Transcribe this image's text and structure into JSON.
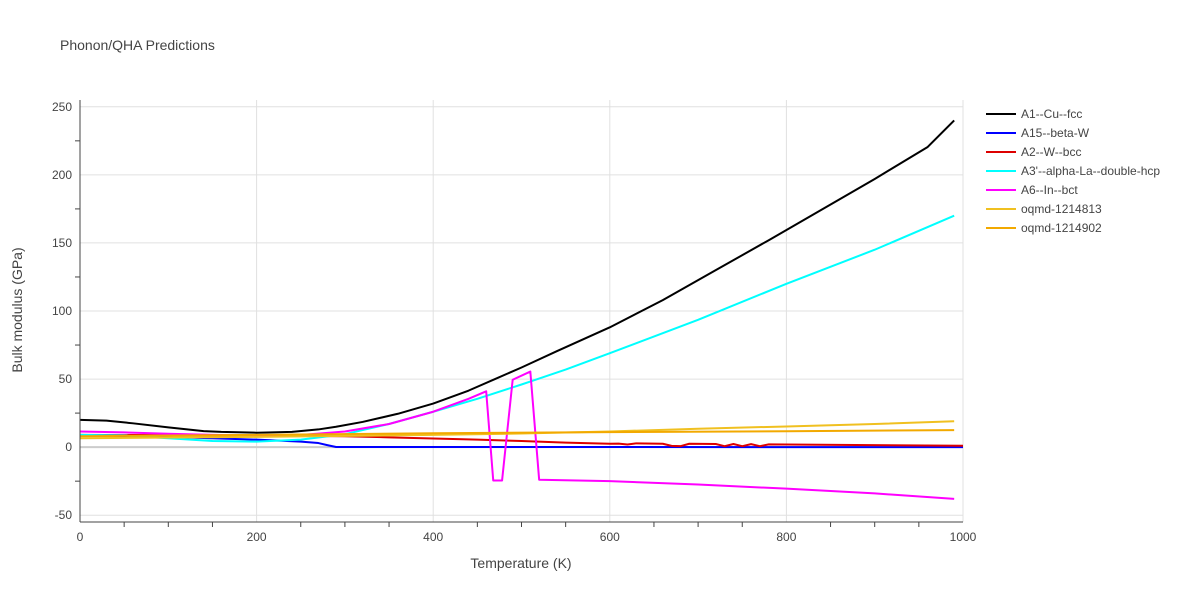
{
  "chart_data": {
    "type": "line",
    "title": "Phonon/QHA Predictions",
    "xlabel": "Temperature (K)",
    "ylabel": "Bulk modulus (GPa)",
    "xlim": [
      0,
      1000
    ],
    "ylim": [
      -55,
      255
    ],
    "xticks": [
      0,
      200,
      400,
      600,
      800,
      1000
    ],
    "yticks": [
      -50,
      0,
      50,
      100,
      150,
      200,
      250
    ],
    "grid": true,
    "legend_position": "right",
    "series": [
      {
        "name": "A1--Cu--fcc",
        "color": "#000000",
        "points": [
          [
            0,
            20
          ],
          [
            30,
            19.5
          ],
          [
            60,
            17.5
          ],
          [
            100,
            14.5
          ],
          [
            140,
            11.8
          ],
          [
            160,
            11.2
          ],
          [
            200,
            10.6
          ],
          [
            240,
            11.2
          ],
          [
            270,
            13
          ],
          [
            290,
            15
          ],
          [
            320,
            18.5
          ],
          [
            360,
            24.5
          ],
          [
            400,
            32
          ],
          [
            440,
            41.5
          ],
          [
            470,
            50
          ],
          [
            500,
            58.5
          ],
          [
            540,
            70.5
          ],
          [
            600,
            88
          ],
          [
            660,
            108
          ],
          [
            720,
            130
          ],
          [
            780,
            152
          ],
          [
            840,
            174.5
          ],
          [
            900,
            197
          ],
          [
            960,
            220.5
          ],
          [
            990,
            240
          ]
        ]
      },
      {
        "name": "A15--beta-W",
        "color": "#0000ff",
        "points": [
          [
            0,
            8.5
          ],
          [
            100,
            7.5
          ],
          [
            200,
            5.5
          ],
          [
            250,
            4
          ],
          [
            270,
            3
          ],
          [
            280,
            1.5
          ],
          [
            290,
            0.1
          ],
          [
            1000,
            0
          ]
        ]
      },
      {
        "name": "A2--W--bcc",
        "color": "#dd0000",
        "points": [
          [
            0,
            9
          ],
          [
            200,
            8.5
          ],
          [
            300,
            8
          ],
          [
            350,
            7.2
          ],
          [
            400,
            6.3
          ],
          [
            450,
            5.5
          ],
          [
            500,
            4.5
          ],
          [
            550,
            3.3
          ],
          [
            600,
            2.5
          ],
          [
            610,
            2.6
          ],
          [
            620,
            1.9
          ],
          [
            630,
            2.8
          ],
          [
            660,
            2.5
          ],
          [
            670,
            0.9
          ],
          [
            680,
            0.7
          ],
          [
            690,
            2.5
          ],
          [
            720,
            2.3
          ],
          [
            730,
            0.7
          ],
          [
            740,
            2.3
          ],
          [
            750,
            0.7
          ],
          [
            760,
            2.2
          ],
          [
            770,
            0.7
          ],
          [
            780,
            2
          ],
          [
            1000,
            1
          ]
        ]
      },
      {
        "name": "A3'--alpha-La--double-hcp",
        "color": "#00ffff",
        "points": [
          [
            0,
            9
          ],
          [
            50,
            8.5
          ],
          [
            100,
            6.5
          ],
          [
            150,
            4.5
          ],
          [
            200,
            4
          ],
          [
            250,
            5.5
          ],
          [
            300,
            9.5
          ],
          [
            350,
            17
          ],
          [
            400,
            26
          ],
          [
            450,
            35.5
          ],
          [
            500,
            46
          ],
          [
            550,
            57
          ],
          [
            600,
            69
          ],
          [
            700,
            93.5
          ],
          [
            800,
            120
          ],
          [
            900,
            145
          ],
          [
            990,
            170
          ]
        ]
      },
      {
        "name": "A6--In--bct",
        "color": "#ff00ff",
        "points": [
          [
            0,
            11.5
          ],
          [
            50,
            10.8
          ],
          [
            100,
            9.8
          ],
          [
            150,
            9
          ],
          [
            200,
            8.4
          ],
          [
            250,
            8.9
          ],
          [
            300,
            11.5
          ],
          [
            350,
            17
          ],
          [
            400,
            26
          ],
          [
            440,
            35.5
          ],
          [
            460,
            41
          ],
          [
            468,
            -24.5
          ],
          [
            478,
            -24.5
          ],
          [
            490,
            49.5
          ],
          [
            510,
            55.5
          ],
          [
            520,
            -24
          ],
          [
            600,
            -25
          ],
          [
            700,
            -27.5
          ],
          [
            800,
            -30.5
          ],
          [
            900,
            -34
          ],
          [
            990,
            -38
          ]
        ]
      },
      {
        "name": "oqmd-1214813",
        "color": "#f0c020",
        "points": [
          [
            0,
            6.5
          ],
          [
            200,
            7.5
          ],
          [
            400,
            9
          ],
          [
            500,
            10
          ],
          [
            600,
            11.5
          ],
          [
            700,
            13.5
          ],
          [
            800,
            15.2
          ],
          [
            900,
            17
          ],
          [
            990,
            19
          ]
        ]
      },
      {
        "name": "oqmd-1214902",
        "color": "#f2a900",
        "points": [
          [
            0,
            8
          ],
          [
            200,
            9
          ],
          [
            400,
            10.2
          ],
          [
            600,
            11
          ],
          [
            800,
            11.7
          ],
          [
            990,
            12.5
          ]
        ]
      }
    ]
  }
}
